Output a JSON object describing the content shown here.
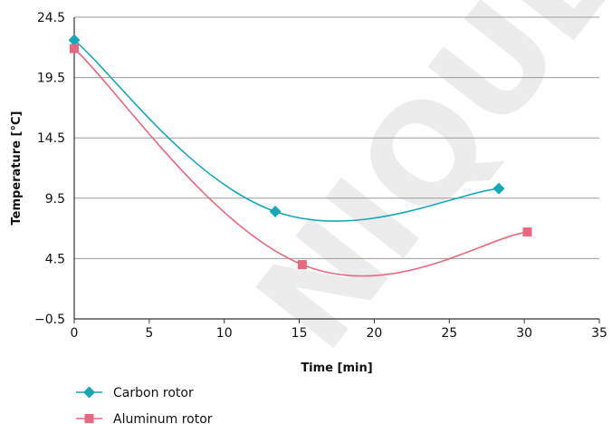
{
  "chart_data": {
    "type": "line",
    "xlabel": "Time [min]",
    "ylabel": "Temperature [°C]",
    "xlim": [
      0,
      35
    ],
    "ylim": [
      -0.5,
      24.5
    ],
    "xticks": [
      0,
      5,
      10,
      15,
      20,
      25,
      30,
      35
    ],
    "yticks": [
      -0.5,
      4.5,
      9.5,
      14.5,
      19.5,
      24.5
    ],
    "ytick_labels": [
      "−0.5",
      "4.5",
      "9.5",
      "14.5",
      "19.5",
      "24.5"
    ],
    "grid": "horizontal",
    "legend_position": "bottom-left",
    "smooth": true,
    "series": [
      {
        "name": "Carbon rotor",
        "color": "#17a8b8",
        "marker": "diamond",
        "points": [
          [
            0,
            22.6
          ],
          [
            13.4,
            8.4
          ],
          [
            28.3,
            10.3
          ]
        ]
      },
      {
        "name": "Aluminum rotor",
        "color": "#e8687f",
        "marker": "square",
        "points": [
          [
            0,
            21.9
          ],
          [
            15.2,
            4.0
          ],
          [
            30.2,
            6.7
          ]
        ]
      }
    ],
    "watermark": "NIQUE"
  }
}
